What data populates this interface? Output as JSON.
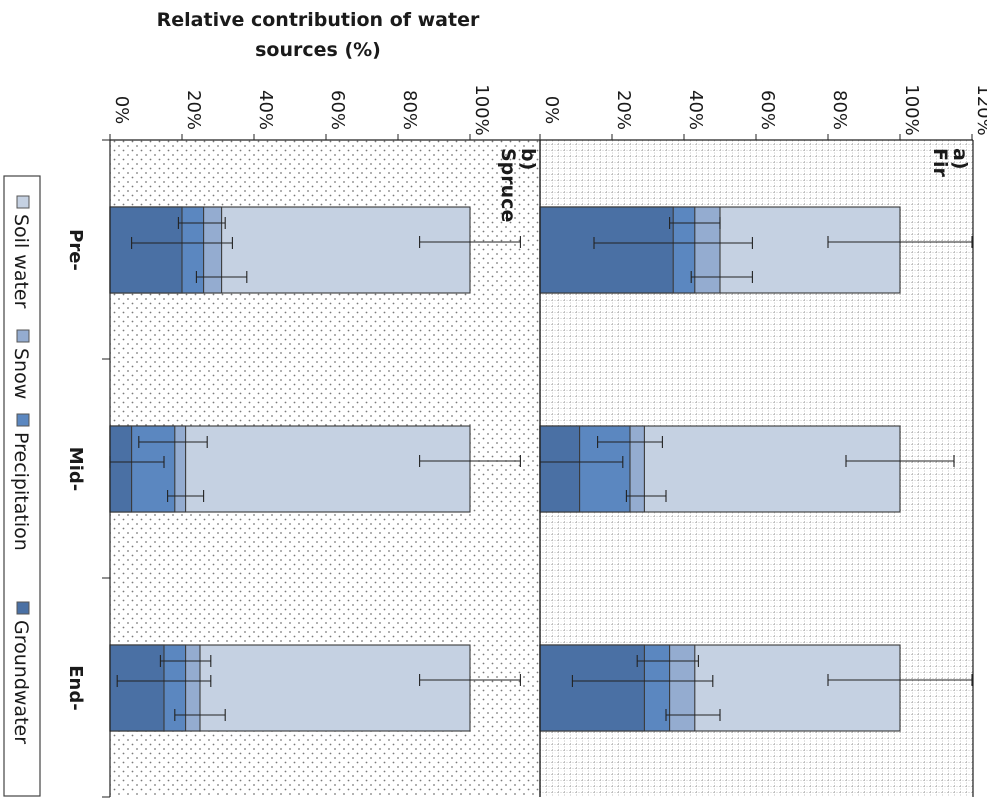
{
  "chart_data": {
    "type": "bar",
    "stacked": true,
    "orientation": "rotated",
    "title": "Relative contribution of water sources (%)",
    "title_lines": [
      "Relative contribution of water",
      "sources (%)"
    ],
    "categories": [
      "Pre-",
      "Mid-",
      "End-"
    ],
    "legend": {
      "position": "left",
      "entries": [
        "Soil water",
        "Snow",
        "Precipitation",
        "Groundwater"
      ]
    },
    "series_colors": {
      "Soil water": "#c5d1e2",
      "Snow": "#94acd0",
      "Precipitation": "#5b87c0",
      "Groundwater": "#4a70a4"
    },
    "panels": [
      {
        "label": "a)",
        "species": "Fir",
        "ylim": [
          0,
          120
        ],
        "ticks": [
          "0%",
          "20%",
          "40%",
          "60%",
          "80%",
          "100%",
          "120%"
        ],
        "grid": "dotted grid",
        "cumulative": [
          {
            "category": "Pre-",
            "Groundwater": 37,
            "Precipitation": 43,
            "Snow": 50,
            "Soil water": 100
          },
          {
            "category": "Mid-",
            "Groundwater": 11,
            "Precipitation": 25,
            "Snow": 29,
            "Soil water": 100
          },
          {
            "category": "End-",
            "Groundwater": 29,
            "Precipitation": 36,
            "Snow": 43,
            "Soil water": 100
          }
        ],
        "error_bars": [
          {
            "category": "Pre-",
            "Groundwater": [
              15,
              59
            ],
            "Precipitation": [
              36,
              50
            ],
            "Snow": [
              42,
              59
            ],
            "Soil water": [
              80,
              120
            ]
          },
          {
            "category": "Mid-",
            "Groundwater": [
              0,
              23
            ],
            "Precipitation": [
              16,
              34
            ],
            "Snow": [
              24,
              35
            ],
            "Soil water": [
              85,
              115
            ]
          },
          {
            "category": "End-",
            "Groundwater": [
              9,
              48
            ],
            "Precipitation": [
              27,
              44
            ],
            "Snow": [
              35,
              50
            ],
            "Soil water": [
              80,
              120
            ]
          }
        ]
      },
      {
        "label": "b)",
        "species": "Spruce",
        "ylim": [
          0,
          120
        ],
        "ticks": [
          "0%",
          "20%",
          "40%",
          "60%",
          "80%",
          "100%"
        ],
        "grid": "dot pattern",
        "cumulative": [
          {
            "category": "Pre-",
            "Groundwater": 20,
            "Precipitation": 26,
            "Snow": 31,
            "Soil water": 100
          },
          {
            "category": "Mid-",
            "Groundwater": 6,
            "Precipitation": 18,
            "Snow": 21,
            "Soil water": 100
          },
          {
            "category": "End-",
            "Groundwater": 15,
            "Precipitation": 21,
            "Snow": 25,
            "Soil water": 100
          }
        ],
        "error_bars": [
          {
            "category": "Pre-",
            "Groundwater": [
              6,
              34
            ],
            "Precipitation": [
              19,
              32
            ],
            "Snow": [
              24,
              38
            ],
            "Soil water": [
              86,
              114
            ]
          },
          {
            "category": "Mid-",
            "Groundwater": [
              0,
              15
            ],
            "Precipitation": [
              8,
              27
            ],
            "Snow": [
              16,
              26
            ],
            "Soil water": [
              86,
              114
            ]
          },
          {
            "category": "End-",
            "Groundwater": [
              2,
              28
            ],
            "Precipitation": [
              14,
              28
            ],
            "Snow": [
              18,
              32
            ],
            "Soil water": [
              86,
              114
            ]
          }
        ]
      }
    ]
  }
}
